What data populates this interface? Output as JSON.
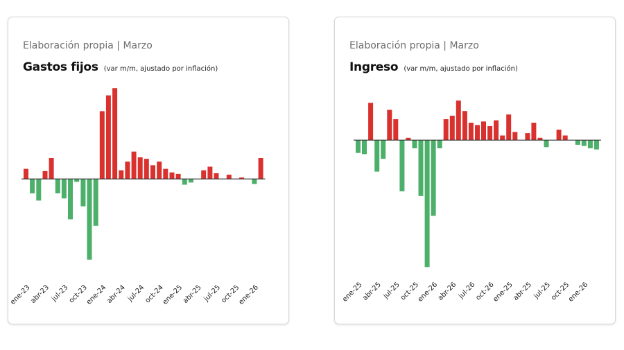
{
  "colors": {
    "positive": "#4caf6a",
    "negative": "#d9312e",
    "axis": "#333333"
  },
  "chart_data": [
    {
      "type": "bar",
      "source": "Elaboración propia | Marzo",
      "title": "Gastos fijos",
      "subtitle": "(var m/m, ajustado por inflación)",
      "tick_labels": [
        "ene-23",
        "abr-23",
        "jul-23",
        "oct-23",
        "ene-24",
        "abr-24",
        "jul-24",
        "oct-24",
        "ene-25",
        "abr-25",
        "jul-25",
        "oct-25",
        "ene-26"
      ],
      "tick_start_month": 0,
      "values": [
        1.4,
        -2.0,
        -3.0,
        1.1,
        2.9,
        -2.0,
        -2.7,
        -5.6,
        -0.4,
        -3.8,
        -11.2,
        -6.5,
        9.4,
        11.6,
        12.6,
        1.2,
        2.4,
        3.8,
        3.0,
        2.8,
        1.9,
        2.4,
        1.4,
        0.9,
        0.7,
        -0.8,
        -0.5,
        0,
        1.2,
        1.7,
        0.8,
        0,
        0.6,
        0,
        0.2,
        0,
        -0.7,
        2.9
      ],
      "ylim": [
        -12,
        13
      ]
    },
    {
      "type": "bar",
      "source": "Elaboración propia | Marzo",
      "title": "Ingreso",
      "subtitle": "(var m/m, ajustado por inflación)",
      "tick_labels": [
        "ene-25",
        "abr-25",
        "jul-25",
        "oct-25",
        "ene-26",
        "abr-26",
        "jul-26",
        "oct-26",
        "ene-25",
        "abr-25",
        "jul-25",
        "oct-25",
        "ene-26"
      ],
      "tick_start_month": 0,
      "values": [
        -1.1,
        -1.2,
        3.2,
        -2.7,
        -1.6,
        2.6,
        1.8,
        -4.4,
        0.2,
        -0.7,
        -4.8,
        -10.9,
        -6.5,
        -0.7,
        1.8,
        2.1,
        3.4,
        2.5,
        1.5,
        1.3,
        1.6,
        1.2,
        1.7,
        0.4,
        2.2,
        0.7,
        0,
        0.6,
        1.5,
        0.2,
        -0.6,
        0,
        0.9,
        0.4,
        0,
        -0.4,
        -0.5,
        -0.7,
        -0.8
      ],
      "ylim": [
        -11,
        4
      ]
    }
  ]
}
